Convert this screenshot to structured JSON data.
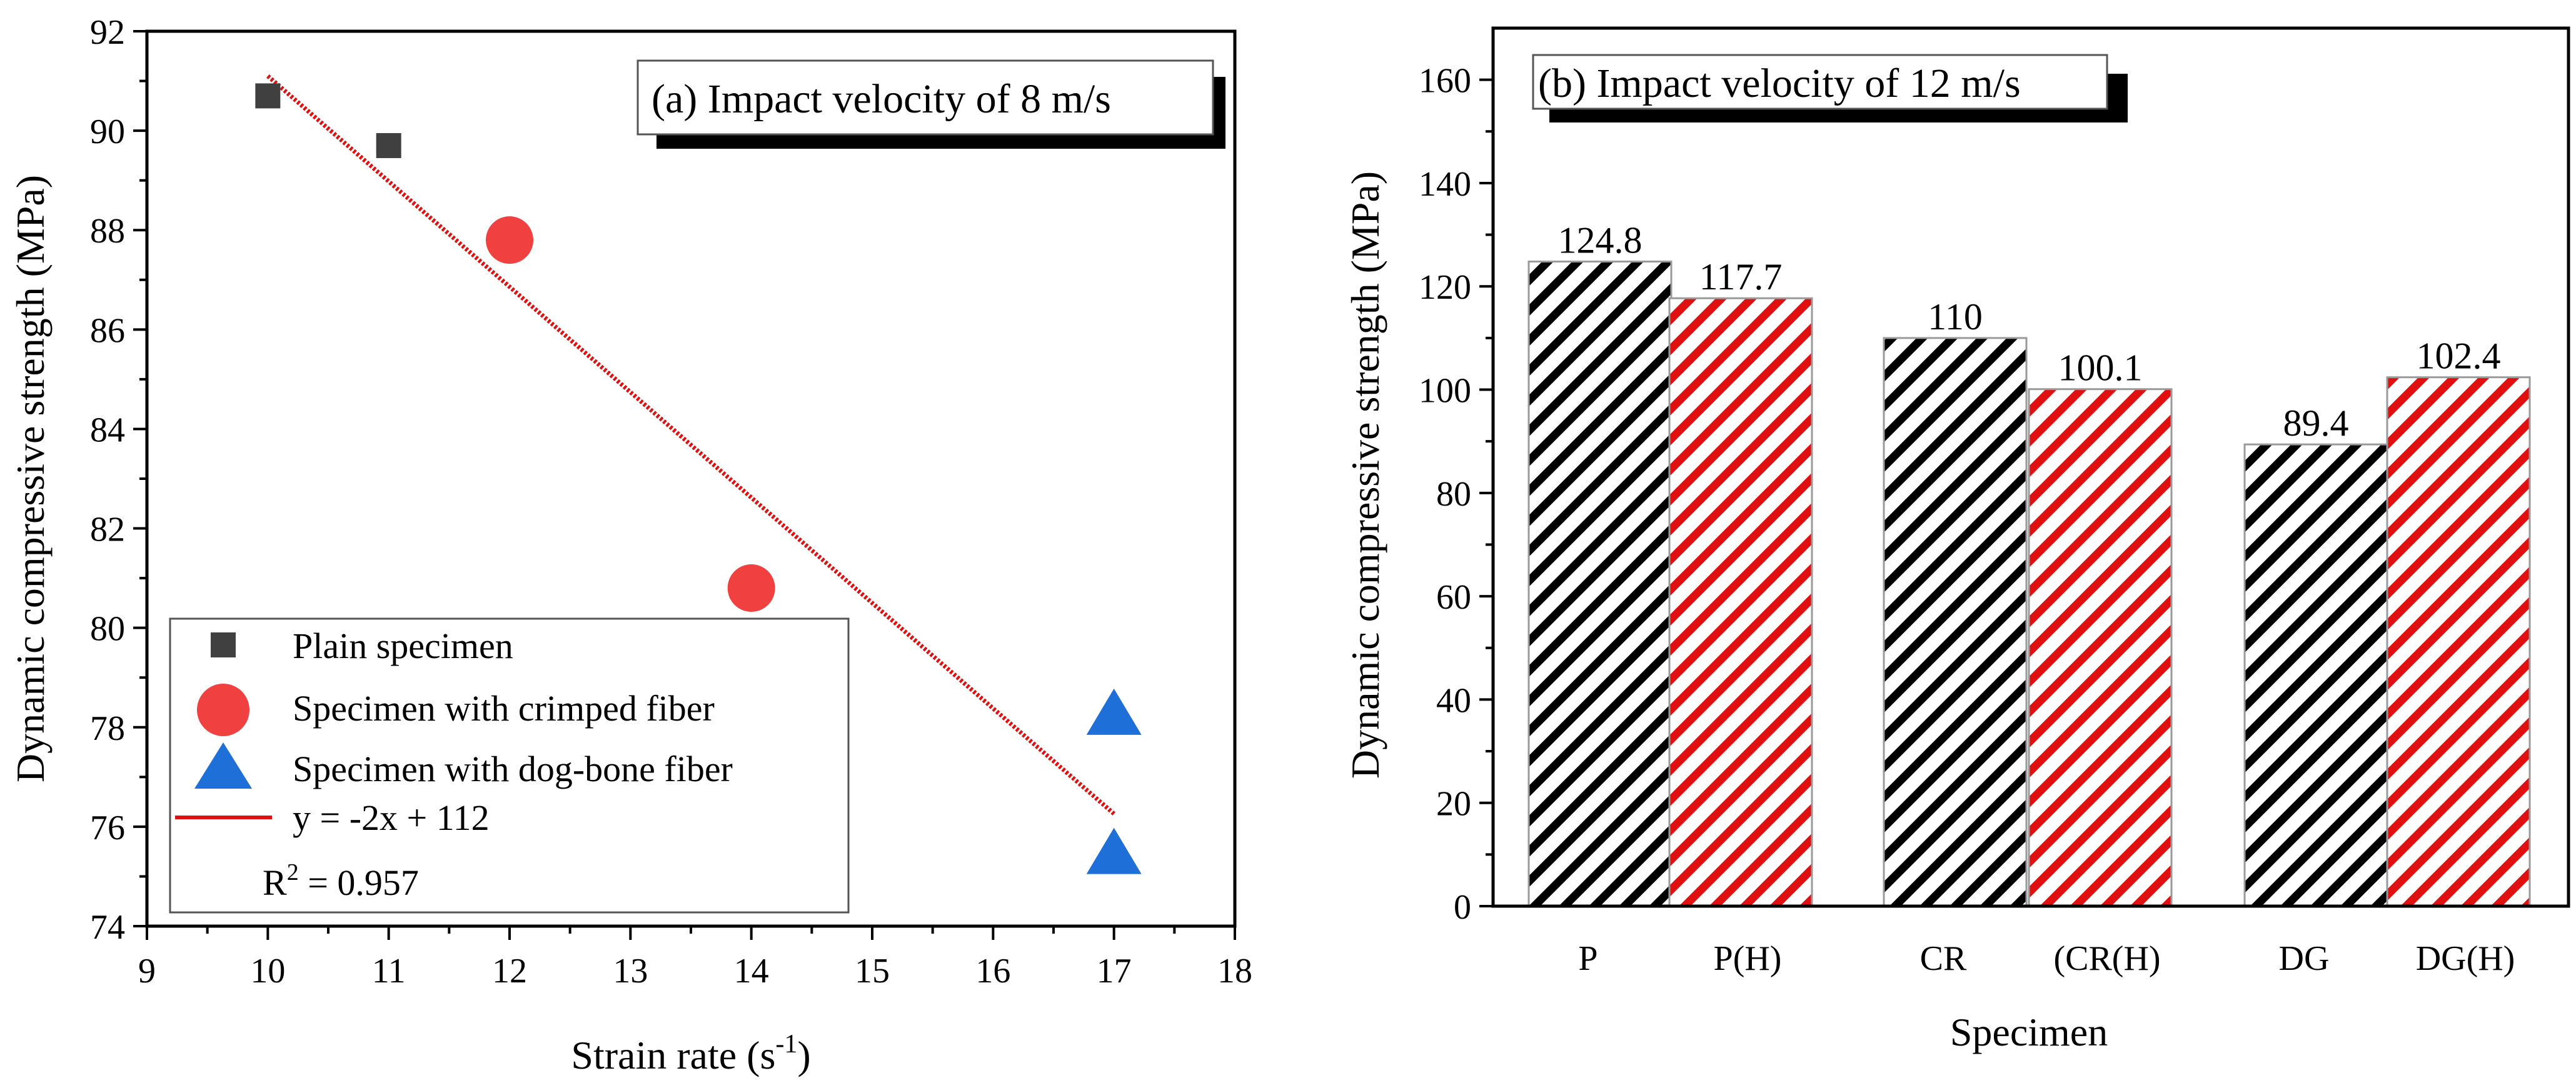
{
  "chart_data": [
    {
      "type": "scatter",
      "panel_title": "(a) Impact velocity of 8 m/s",
      "xlabel_main": "Strain rate (s",
      "xlabel_sup": "-1",
      "xlabel_close": ")",
      "ylabel": "Dynamic compressive strength (MPa)",
      "xlim": [
        9,
        18
      ],
      "ylim": [
        74,
        92
      ],
      "xticks": [
        9,
        10,
        11,
        12,
        13,
        14,
        15,
        16,
        17,
        18
      ],
      "yticks": [
        74,
        76,
        78,
        80,
        82,
        84,
        86,
        88,
        90,
        92
      ],
      "series": [
        {
          "name": "Plain specimen",
          "marker": "square",
          "color": "#404040",
          "x": [
            10,
            11
          ],
          "y": [
            90.7,
            89.7
          ]
        },
        {
          "name": "Specimen with crimped fiber",
          "marker": "circle",
          "color": "#f04040",
          "x": [
            12,
            14
          ],
          "y": [
            87.8,
            80.8
          ]
        },
        {
          "name": "Specimen with dog-bone fiber",
          "marker": "triangle",
          "color": "#1f6fd8",
          "x": [
            17,
            17
          ],
          "y": [
            78.2,
            75.4
          ]
        }
      ],
      "fit": {
        "name": "y = -2x + 112",
        "slope": -2.12,
        "intercept": 112.3,
        "x_range": [
          10,
          17
        ],
        "color": "#e01010",
        "r2_prefix": "R",
        "r2_sup": "2",
        "r2_value": " = 0.957"
      }
    },
    {
      "type": "bar",
      "panel_title": "(b) Impact velocity of 12 m/s",
      "xlabel": "Specimen",
      "ylabel": "Dynamic compressive strength (MPa)",
      "ylim": [
        0,
        170
      ],
      "yticks": [
        0,
        20,
        40,
        60,
        80,
        100,
        120,
        140,
        160
      ],
      "categories": [
        "P",
        "P(H)",
        "CR",
        "(CR(H)",
        "DG",
        "DG(H)"
      ],
      "values": [
        124.8,
        117.7,
        110,
        100.1,
        89.4,
        102.4
      ],
      "value_labels": [
        "124.8",
        "117.7",
        "110",
        "100.1",
        "89.4",
        "102.4"
      ],
      "bar_colors": [
        "#000000",
        "#e01010",
        "#000000",
        "#e01010",
        "#000000",
        "#e01010"
      ],
      "hatch": "diagonal"
    }
  ]
}
